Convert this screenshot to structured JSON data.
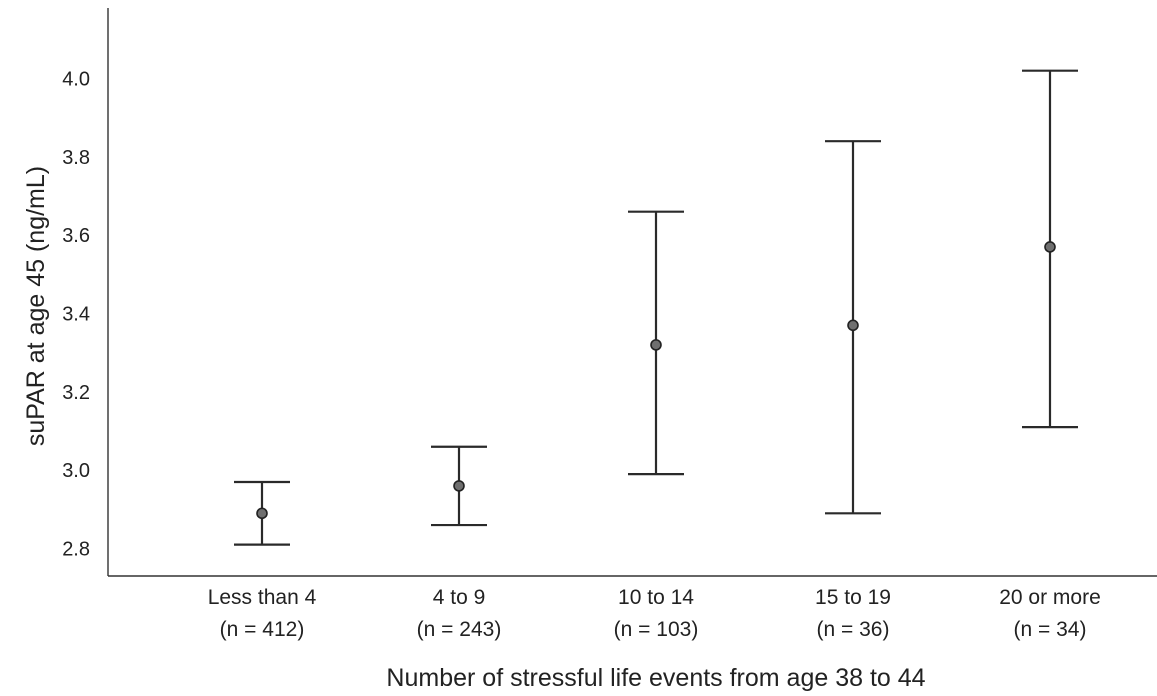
{
  "chart_data": {
    "type": "errorbar",
    "xlabel": "Number of stressful life events from age 38 to 44",
    "ylabel": "suPAR at age 45 (ng/mL)",
    "ylim": [
      2.73,
      4.18
    ],
    "yticks": [
      "2.8",
      "3.0",
      "3.2",
      "3.4",
      "3.6",
      "3.8",
      "4.0"
    ],
    "grid": false,
    "categories": [
      {
        "label": "Less than 4",
        "n_label": "(n = 412)"
      },
      {
        "label": "4 to 9",
        "n_label": "(n = 243)"
      },
      {
        "label": "10 to 14",
        "n_label": "(n = 103)"
      },
      {
        "label": "15 to 19",
        "n_label": "(n = 36)"
      },
      {
        "label": "20 or more",
        "n_label": "(n = 34)"
      }
    ],
    "series": [
      {
        "mean": [
          2.89,
          2.96,
          3.32,
          3.37,
          3.57
        ],
        "lower": [
          2.81,
          2.86,
          2.99,
          2.89,
          3.11
        ],
        "upper": [
          2.97,
          3.06,
          3.66,
          3.84,
          4.02
        ]
      }
    ]
  }
}
